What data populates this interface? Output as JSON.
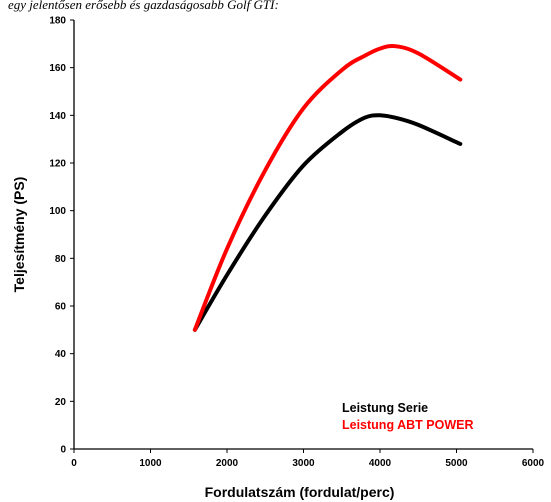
{
  "header": {
    "text": "egy jelentősen erősebb és gazdaságosabb Golf GTI:"
  },
  "chart_data": {
    "type": "line",
    "title": "",
    "xlabel": "Fordulatszám (fordulat/perc)",
    "ylabel": "Teljesítmény (PS)",
    "xlim": [
      0,
      6000
    ],
    "ylim": [
      0,
      180
    ],
    "xticks": [
      0,
      1000,
      2000,
      3000,
      4000,
      5000,
      6000
    ],
    "yticks": [
      0,
      20,
      40,
      60,
      80,
      100,
      120,
      140,
      160,
      180
    ],
    "grid": false,
    "legend_position": "bottom-right",
    "series": [
      {
        "name": "Leistung Serie",
        "color": "#000000",
        "x": [
          1580,
          2000,
          2500,
          3000,
          3500,
          3800,
          4000,
          4200,
          4500,
          5050
        ],
        "y": [
          50,
          73,
          98,
          119,
          133,
          139,
          140,
          139,
          136,
          128
        ]
      },
      {
        "name": "Leistung ABT POWER",
        "color": "#ff0000",
        "x": [
          1580,
          2000,
          2500,
          3000,
          3500,
          3800,
          4000,
          4200,
          4500,
          5050
        ],
        "y": [
          50,
          84,
          117,
          143,
          159,
          165,
          168,
          169,
          166,
          155
        ]
      }
    ]
  }
}
